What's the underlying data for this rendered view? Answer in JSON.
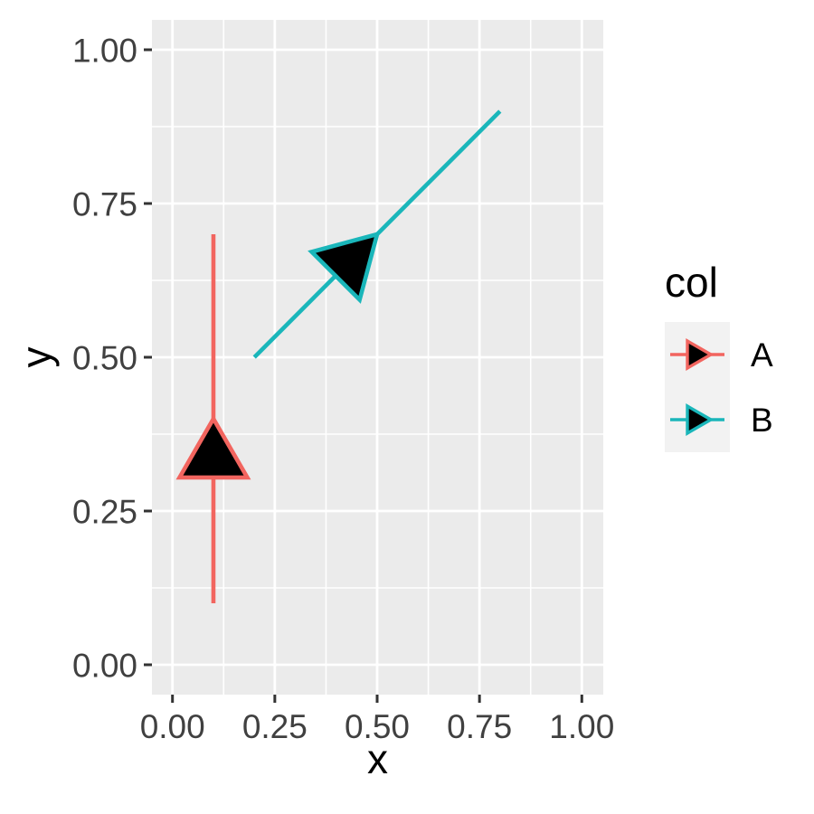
{
  "figure": {
    "background": "#FFFFFF"
  },
  "chart_data": {
    "type": "segment",
    "title": "",
    "xlabel": "x",
    "ylabel": "y",
    "xlim": [
      0,
      1
    ],
    "ylim": [
      0,
      1
    ],
    "grid": {
      "major": true,
      "minor": true
    },
    "x_ticks": {
      "values": [
        0,
        0.25,
        0.5,
        0.75,
        1
      ],
      "labels": [
        "0.00",
        "0.25",
        "0.50",
        "0.75",
        "1.00"
      ]
    },
    "y_ticks": {
      "values": [
        0,
        0.25,
        0.5,
        0.75,
        1
      ],
      "labels": [
        "0.00",
        "0.25",
        "0.50",
        "0.75",
        "1.00"
      ]
    },
    "series": [
      {
        "name": "A",
        "color": "#F2655F",
        "segment": {
          "x1": 0.1,
          "y1": 0.1,
          "x2": 0.1,
          "y2": 0.7
        },
        "arrow": {
          "position": "midpoint",
          "tip_x": 0.1,
          "tip_y": 0.4,
          "direction": "up",
          "fill": "#000000",
          "angle_deg": 30
        }
      },
      {
        "name": "B",
        "color": "#1AB6BA",
        "segment": {
          "x1": 0.2,
          "y1": 0.5,
          "x2": 0.8,
          "y2": 0.9
        },
        "arrow": {
          "position": "midpoint",
          "tip_x": 0.5,
          "tip_y": 0.7,
          "direction": "up-right",
          "fill": "#000000",
          "angle_deg": 30
        }
      }
    ],
    "legend": {
      "title": "col",
      "position": "right",
      "entries": [
        {
          "label": "A",
          "color": "#F2655F"
        },
        {
          "label": "B",
          "color": "#1AB6BA"
        }
      ]
    }
  },
  "style": {
    "panel_bg": "#EBEBEB",
    "grid_color": "#FFFFFF",
    "tick_color": "#333333",
    "tick_label_color": "#404040",
    "title_color": "#000000",
    "legend_key_bg": "#F2F2F2",
    "arrow_fill": "#000000"
  }
}
